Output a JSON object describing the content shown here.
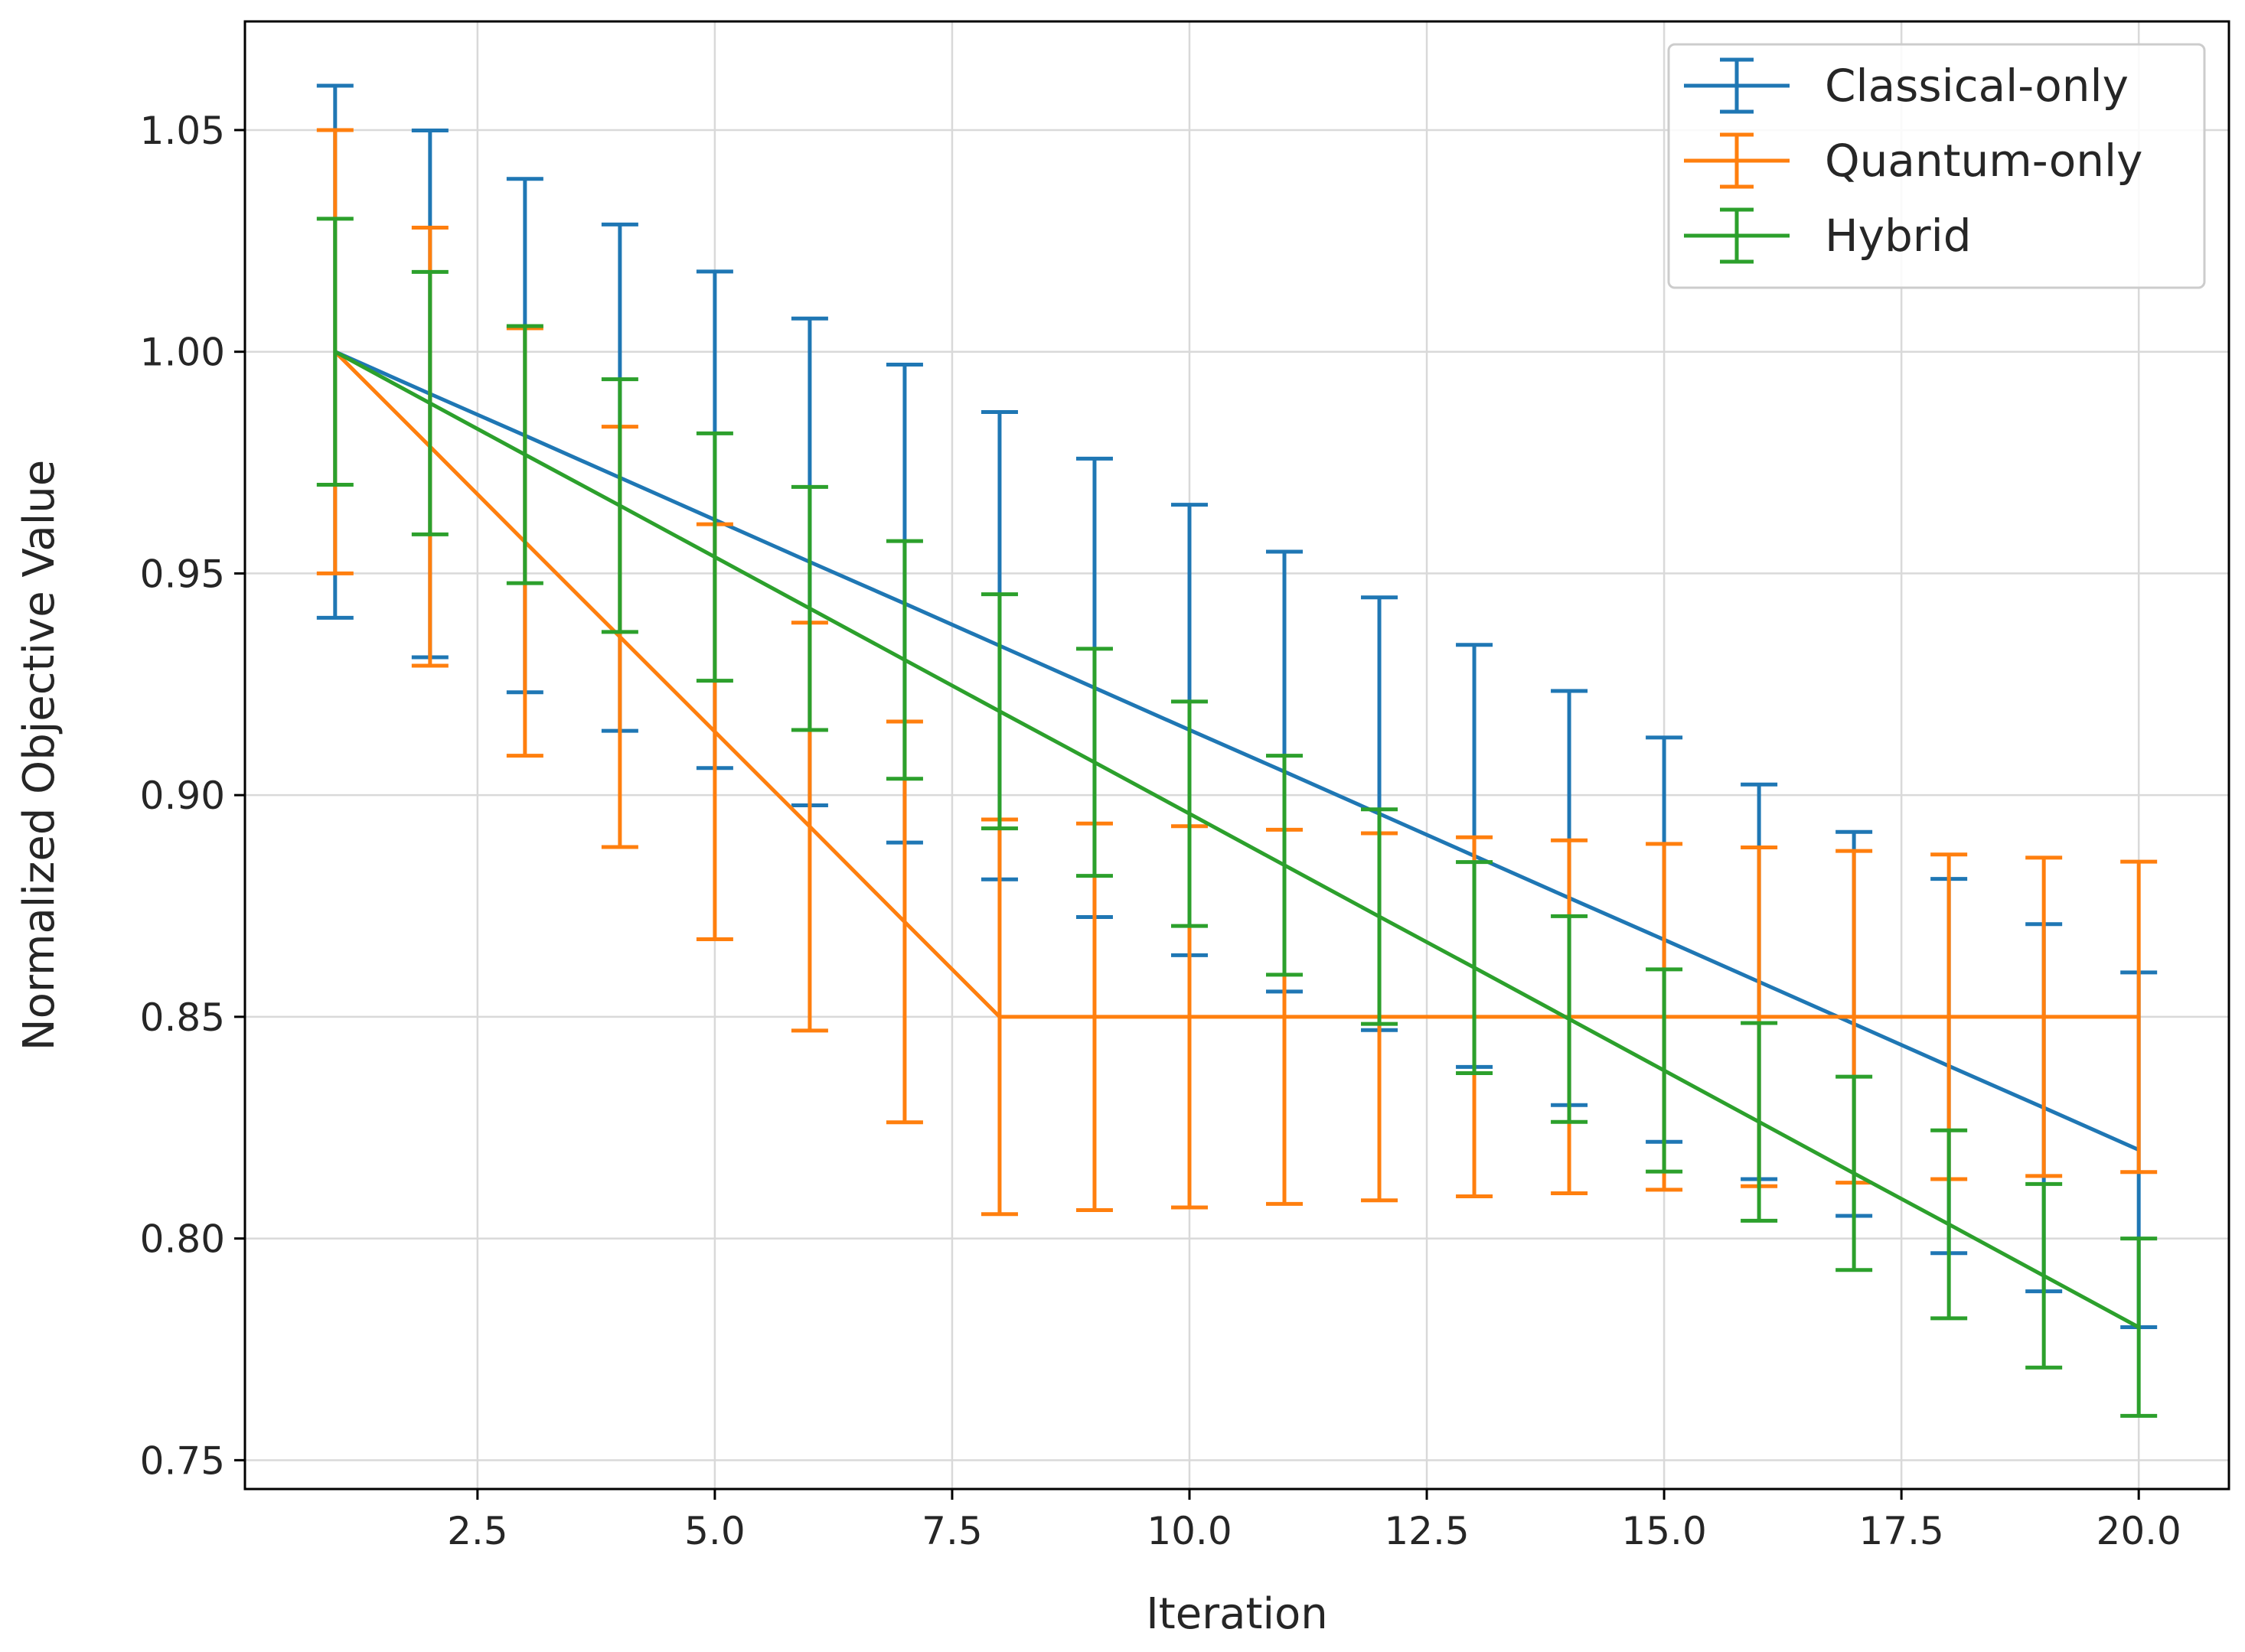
{
  "chart_data": {
    "type": "line",
    "title": "",
    "xlabel": "Iteration",
    "ylabel": "Normalized Objective Value",
    "xlim": [
      0.05,
      20.95
    ],
    "ylim": [
      0.7435,
      1.0745
    ],
    "x_ticks": [
      "2.5",
      "5.0",
      "7.5",
      "10.0",
      "12.5",
      "15.0",
      "17.5",
      "20.0"
    ],
    "y_ticks": [
      "0.75",
      "0.80",
      "0.85",
      "0.90",
      "0.95",
      "1.00",
      "1.05"
    ],
    "grid": true,
    "legend_position": "top-right",
    "x": [
      1,
      2,
      3,
      4,
      5,
      6,
      7,
      8,
      9,
      10,
      11,
      12,
      13,
      14,
      15,
      16,
      17,
      18,
      19,
      20
    ],
    "series": [
      {
        "name": "Classical-only",
        "color": "#1f77b4",
        "values": [
          1.0,
          0.9905,
          0.9811,
          0.9716,
          0.9621,
          0.9526,
          0.9432,
          0.9337,
          0.9242,
          0.9147,
          0.9053,
          0.8958,
          0.8863,
          0.8768,
          0.8674,
          0.8579,
          0.8484,
          0.8389,
          0.8295,
          0.82
        ],
        "errors": [
          0.06,
          0.0594,
          0.0579,
          0.0571,
          0.056,
          0.0549,
          0.0539,
          0.0527,
          0.0517,
          0.0508,
          0.0496,
          0.0488,
          0.0476,
          0.0467,
          0.0456,
          0.0445,
          0.0433,
          0.0422,
          0.0414,
          0.04
        ]
      },
      {
        "name": "Quantum-only",
        "color": "#ff7f0e",
        "values": [
          1.0,
          0.9786,
          0.9571,
          0.9357,
          0.9143,
          0.8929,
          0.8714,
          0.85,
          0.85,
          0.85,
          0.85,
          0.85,
          0.85,
          0.85,
          0.85,
          0.85,
          0.85,
          0.85,
          0.85,
          0.85
        ],
        "errors": [
          0.05,
          0.0494,
          0.0482,
          0.0474,
          0.0468,
          0.046,
          0.0452,
          0.0445,
          0.0436,
          0.043,
          0.0422,
          0.0414,
          0.0405,
          0.0398,
          0.039,
          0.0382,
          0.0374,
          0.0366,
          0.0359,
          0.035
        ]
      },
      {
        "name": "Hybrid",
        "color": "#2ca02c",
        "values": [
          1.0,
          0.9884,
          0.9768,
          0.9653,
          0.9537,
          0.9421,
          0.9305,
          0.9189,
          0.9074,
          0.8958,
          0.8842,
          0.8726,
          0.8611,
          0.8495,
          0.8379,
          0.8263,
          0.8147,
          0.8032,
          0.7916,
          0.78
        ],
        "errors": [
          0.03,
          0.0296,
          0.029,
          0.0285,
          0.0279,
          0.0274,
          0.0268,
          0.0264,
          0.0256,
          0.0253,
          0.0247,
          0.0242,
          0.0238,
          0.0232,
          0.0228,
          0.0223,
          0.0218,
          0.0212,
          0.0207,
          0.02
        ]
      }
    ]
  }
}
